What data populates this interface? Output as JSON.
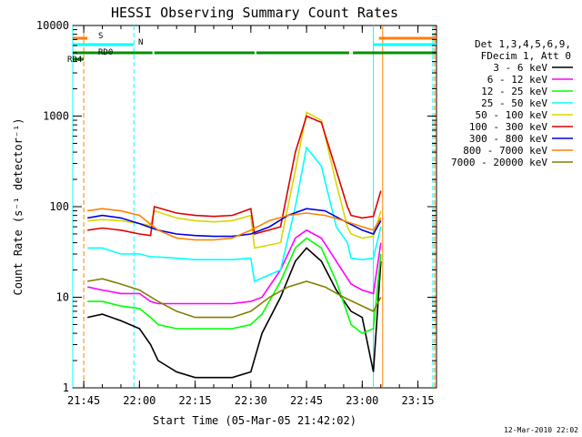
{
  "chart_data": {
    "type": "line",
    "title": "HESSI Observing Summary Count Rates",
    "xlabel": "Start Time (05-Mar-05 21:42:02)",
    "ylabel": "Count Rate (s⁻¹ detector⁻¹)",
    "y_scale": "log",
    "ylim": [
      1,
      10000
    ],
    "xlim": [
      "21:42:02",
      "23:20:00"
    ],
    "x_ticks": [
      "21:45",
      "22:00",
      "22:15",
      "22:30",
      "22:45",
      "23:00",
      "23:15"
    ],
    "y_ticks": [
      "1",
      "10",
      "100",
      "1000",
      "10000"
    ],
    "timestamp": "12-Mar-2010 22:02",
    "legend": {
      "position": "right",
      "header": [
        "Det 1,3,4,5,6,9,",
        "FDecim 1, Att 0"
      ]
    },
    "flags": [
      {
        "label": "S",
        "color": "#ff8000",
        "segments": [
          [
            "21:42:02",
            "21:46:00"
          ],
          [
            "23:04:30",
            "23:20:00"
          ]
        ]
      },
      {
        "label": "N",
        "color": "#00ffff",
        "segments": [
          [
            "21:42:02",
            "21:58:30"
          ],
          [
            "23:03:00",
            "23:20:00"
          ]
        ]
      },
      {
        "label": "RD0",
        "color": "#009000",
        "segments": [
          [
            "21:42:02",
            "22:03:30"
          ],
          [
            "22:04:00",
            "22:31:00"
          ],
          [
            "22:31:30",
            "22:56:30"
          ],
          [
            "22:57:30",
            "23:20:00"
          ]
        ]
      },
      {
        "label": "RD4",
        "color": "#009000",
        "segments": [
          [
            "21:42:02",
            "21:45:00"
          ]
        ]
      }
    ],
    "vertical_markers": [
      {
        "time": "21:42:02",
        "color": "#00ffff",
        "style": "solid"
      },
      {
        "time": "21:45:00",
        "color": "#ff8000",
        "style": "dash"
      },
      {
        "time": "21:58:30",
        "color": "#00ffff",
        "style": "dash"
      },
      {
        "time": "23:03:00",
        "color": "#00ffff",
        "style": "solid"
      },
      {
        "time": "23:05:30",
        "color": "#ff8000",
        "style": "solid"
      },
      {
        "time": "23:19:00",
        "color": "#00ffff",
        "style": "dash"
      },
      {
        "time": "23:19:30",
        "color": "#ff8000",
        "style": "dash"
      }
    ],
    "series": [
      {
        "name": "3 - 6 keV",
        "color": "#000000",
        "x": [
          "21:46",
          "21:50",
          "21:55",
          "22:00",
          "22:03",
          "22:05",
          "22:10",
          "22:15",
          "22:20",
          "22:25",
          "22:30",
          "22:33",
          "22:38",
          "22:42",
          "22:45",
          "22:49",
          "22:53",
          "22:57",
          "23:00",
          "23:03",
          "23:05"
        ],
        "y": [
          6,
          6.5,
          5.5,
          4.5,
          3,
          2,
          1.5,
          1.3,
          1.3,
          1.3,
          1.5,
          4,
          10,
          25,
          35,
          25,
          12,
          7,
          6,
          1.5,
          25
        ]
      },
      {
        "name": "6 - 12 keV",
        "color": "#ff00ff",
        "x": [
          "21:46",
          "21:50",
          "21:55",
          "22:00",
          "22:03",
          "22:05",
          "22:10",
          "22:15",
          "22:20",
          "22:25",
          "22:30",
          "22:33",
          "22:38",
          "22:42",
          "22:45",
          "22:49",
          "22:53",
          "22:57",
          "23:00",
          "23:03",
          "23:05"
        ],
        "y": [
          13,
          12,
          11,
          11,
          9,
          8.5,
          8.5,
          8.5,
          8.5,
          8.5,
          9,
          10,
          20,
          45,
          55,
          45,
          25,
          14,
          12,
          11,
          40
        ]
      },
      {
        "name": "12 - 25 keV",
        "color": "#00ff00",
        "x": [
          "21:46",
          "21:50",
          "21:55",
          "22:00",
          "22:03",
          "22:05",
          "22:10",
          "22:15",
          "22:20",
          "22:25",
          "22:30",
          "22:33",
          "22:38",
          "22:42",
          "22:45",
          "22:49",
          "22:53",
          "22:57",
          "23:00",
          "23:03",
          "23:05"
        ],
        "y": [
          9,
          9,
          8,
          7.5,
          6,
          5,
          4.5,
          4.5,
          4.5,
          4.5,
          5,
          6.5,
          15,
          35,
          45,
          35,
          15,
          5,
          4,
          4.5,
          30
        ]
      },
      {
        "name": "25 - 50 keV",
        "color": "#00ffff",
        "x": [
          "21:46",
          "21:50",
          "21:55",
          "22:00",
          "22:03",
          "22:04",
          "22:10",
          "22:15",
          "22:20",
          "22:25",
          "22:30",
          "22:31",
          "22:38",
          "22:42",
          "22:45",
          "22:49",
          "22:53",
          "22:56",
          "22:57",
          "23:00",
          "23:03",
          "23:05"
        ],
        "y": [
          35,
          35,
          30,
          30,
          28,
          28,
          27,
          26,
          26,
          26,
          27,
          15,
          20,
          100,
          450,
          280,
          60,
          40,
          27,
          26,
          27,
          60
        ]
      },
      {
        "name": "50 - 100 keV",
        "color": "#d8d800",
        "x": [
          "21:46",
          "21:50",
          "21:55",
          "22:00",
          "22:03",
          "22:04",
          "22:10",
          "22:15",
          "22:20",
          "22:25",
          "22:30",
          "22:31",
          "22:38",
          "22:42",
          "22:45",
          "22:49",
          "22:53",
          "22:56",
          "22:57",
          "23:00",
          "23:03",
          "23:05"
        ],
        "y": [
          70,
          72,
          70,
          65,
          62,
          90,
          75,
          70,
          68,
          70,
          80,
          35,
          40,
          250,
          1100,
          900,
          180,
          60,
          50,
          45,
          47,
          90
        ]
      },
      {
        "name": "100 - 300 keV",
        "color": "#e00000",
        "x": [
          "21:46",
          "21:50",
          "21:55",
          "22:00",
          "22:03",
          "22:04",
          "22:10",
          "22:15",
          "22:20",
          "22:25",
          "22:30",
          "22:31",
          "22:38",
          "22:42",
          "22:45",
          "22:49",
          "22:53",
          "22:56",
          "22:57",
          "23:00",
          "23:03",
          "23:05"
        ],
        "y": [
          55,
          58,
          55,
          50,
          48,
          100,
          85,
          80,
          78,
          80,
          95,
          50,
          60,
          400,
          1000,
          850,
          250,
          100,
          80,
          75,
          78,
          150
        ]
      },
      {
        "name": "300 - 800 keV",
        "color": "#0000e0",
        "x": [
          "21:46",
          "21:50",
          "21:55",
          "22:00",
          "22:05",
          "22:10",
          "22:15",
          "22:20",
          "22:25",
          "22:30",
          "22:35",
          "22:40",
          "22:45",
          "22:50",
          "22:55",
          "23:00",
          "23:03",
          "23:05"
        ],
        "y": [
          75,
          80,
          75,
          65,
          55,
          50,
          48,
          47,
          47,
          50,
          60,
          80,
          95,
          90,
          70,
          55,
          50,
          70
        ]
      },
      {
        "name": "800 - 7000 keV",
        "color": "#ff8000",
        "x": [
          "21:46",
          "21:50",
          "21:55",
          "22:00",
          "22:05",
          "22:10",
          "22:15",
          "22:20",
          "22:25",
          "22:30",
          "22:35",
          "22:40",
          "22:45",
          "22:50",
          "22:55",
          "23:00",
          "23:03",
          "23:05"
        ],
        "y": [
          90,
          95,
          90,
          80,
          55,
          45,
          43,
          43,
          45,
          55,
          70,
          80,
          85,
          80,
          70,
          60,
          55,
          75
        ]
      },
      {
        "name": "7000 - 20000 keV",
        "color": "#808000",
        "x": [
          "21:46",
          "21:50",
          "21:55",
          "22:00",
          "22:05",
          "22:10",
          "22:15",
          "22:20",
          "22:25",
          "22:30",
          "22:35",
          "22:40",
          "22:45",
          "22:50",
          "22:55",
          "23:00",
          "23:03",
          "23:05"
        ],
        "y": [
          15,
          16,
          14,
          12,
          9,
          7,
          6,
          6,
          6,
          7,
          10,
          13,
          15,
          13,
          10,
          8,
          7,
          10
        ]
      }
    ]
  }
}
